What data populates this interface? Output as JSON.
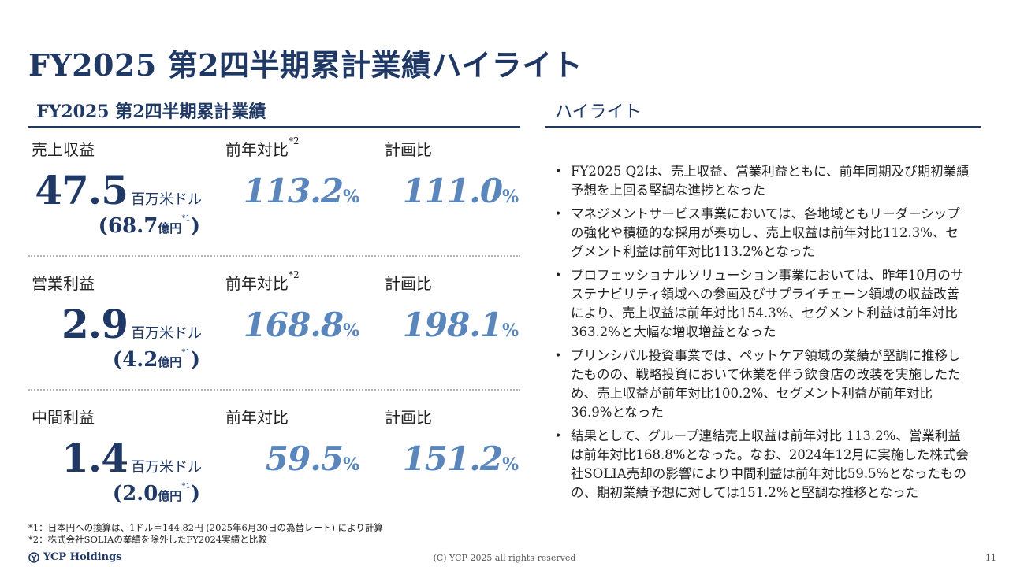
{
  "title": "FY2025 第2四半期累計業績ハイライト",
  "left": {
    "heading": "FY2025 第2四半期累計業績",
    "rows": [
      {
        "label": "売上収益",
        "yoy_label": "前年対比",
        "yoy_sup": "*2",
        "plan_label": "計画比",
        "value": "47.5",
        "unit": "百万米ドル",
        "jpy_open": "(",
        "jpy_value": "68.7",
        "jpy_unit": "億円",
        "jpy_sup": "*1",
        "jpy_close": ")",
        "yoy": "113.2",
        "plan": "111.0",
        "pct": "%"
      },
      {
        "label": "営業利益",
        "yoy_label": "前年対比",
        "yoy_sup": "*2",
        "plan_label": "計画比",
        "value": "2.9",
        "unit": "百万米ドル",
        "jpy_open": "(",
        "jpy_value": "4.2",
        "jpy_unit": "億円",
        "jpy_sup": "*1",
        "jpy_close": ")",
        "yoy": "168.8",
        "plan": "198.1",
        "pct": "%"
      },
      {
        "label": "中間利益",
        "yoy_label": "前年対比",
        "yoy_sup": "",
        "plan_label": "計画比",
        "value": "1.4",
        "unit": "百万米ドル",
        "jpy_open": "(",
        "jpy_value": "2.0",
        "jpy_unit": "億円",
        "jpy_sup": "*1",
        "jpy_close": ")",
        "yoy": "59.5",
        "plan": "151.2",
        "pct": "%"
      }
    ]
  },
  "right": {
    "heading": "ハイライト",
    "bullet": "•",
    "items": [
      "FY2025 Q2は、売上収益、営業利益ともに、前年同期及び期初業績予想を上回る堅調な進捗となった",
      "マネジメントサービス事業においては、各地域ともリーダーシップの強化や積極的な採用が奏功し、売上収益は前年対比112.3%、セグメント利益は前年対比113.2%となった",
      "プロフェッショナルソリューション事業においては、昨年10月のサステナビリティ領域への参画及びサプライチェーン領域の収益改善により、売上収益は前年対比154.3%、セグメント利益は前年対比363.2%と大幅な増収増益となった",
      "プリンシパル投資事業では、ペットケア領域の業績が堅調に推移したものの、戦略投資において休業を伴う飲食店の改装を実施したため、売上収益が前年対比100.2%、セグメント利益が前年対比36.9%となった",
      "結果として、グループ連結売上収益は前年対比 113.2%、営業利益は前年対比168.8%となった。なお、2024年12月に実施した株式会社SOLIA売却の影響により中間利益は前年対比59.5%となったものの、期初業績予想に対しては151.2%と堅調な推移となった"
    ]
  },
  "footnotes": [
    "*1：日本円への換算は、1ドル＝144.82円 (2025年6月30日の為替レート) により計算",
    "*2：株式会社SOLIAの業績を除外したFY2024実績と比較"
  ],
  "footer": {
    "logo_text": "YCP Holdings",
    "copyright": "(C) YCP 2025 all rights reserved",
    "page": "11"
  },
  "colors": {
    "navy": "#1f3864",
    "accent_blue": "#5a86bb",
    "divider": "#b5b5b5"
  }
}
